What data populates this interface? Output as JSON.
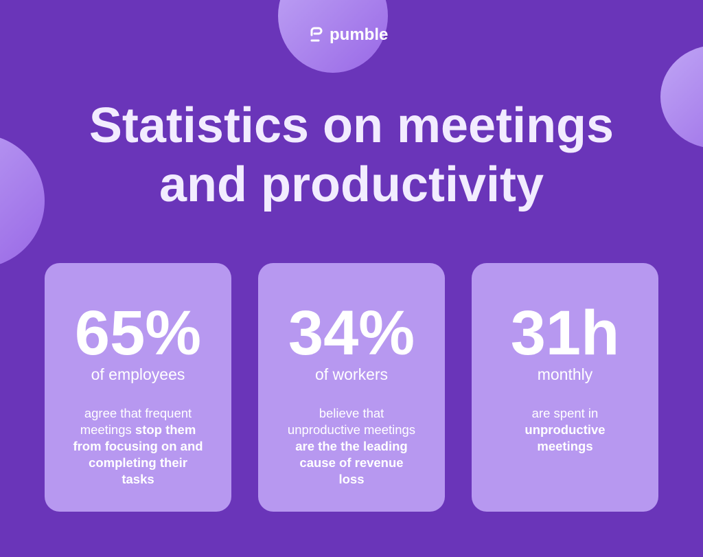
{
  "logo": {
    "text": "pumble"
  },
  "title": {
    "lines": [
      "Statistics on meetings",
      "and productivity"
    ]
  },
  "cards": [
    {
      "stat": "65%",
      "label": "of employees",
      "description": [
        {
          "text": "agree that frequent meetings ",
          "bold": false
        },
        {
          "text": "stop them from focusing on and completing their tasks",
          "bold": true
        }
      ]
    },
    {
      "stat": "34%",
      "label": "of workers",
      "description": [
        {
          "text": "believe that unproductive meetings ",
          "bold": false
        },
        {
          "text": "are the the leading cause of revenue loss",
          "bold": true
        }
      ]
    },
    {
      "stat": "31h",
      "label": "monthly",
      "description": [
        {
          "text": "are spent in ",
          "bold": false
        },
        {
          "text": "unproductive meetings",
          "bold": true
        }
      ]
    }
  ]
}
